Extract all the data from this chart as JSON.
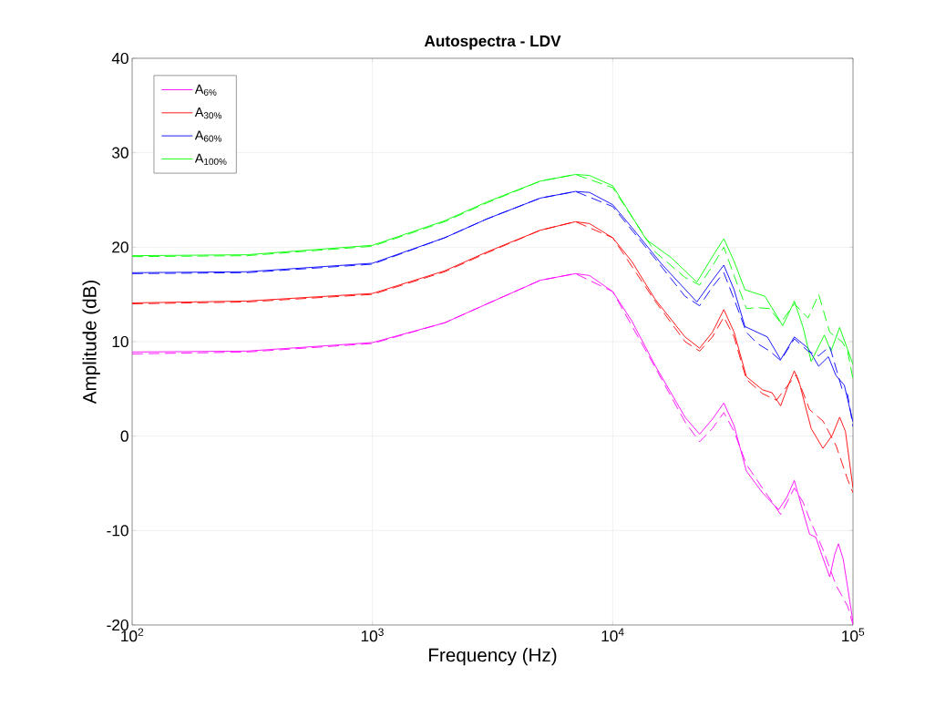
{
  "chart_data": {
    "type": "line",
    "title": "Autospectra - LDV",
    "xlabel": "Frequency (Hz)",
    "ylabel": "Amplitude (dB)",
    "log": "x",
    "grid": true,
    "legend": "top left",
    "xlim": [
      100,
      100000
    ],
    "ylim": [
      -20,
      40
    ],
    "xticks": [
      {
        "value": 100,
        "label": "10$^{2}$"
      },
      {
        "value": 1000,
        "label": "10$^{3}$"
      },
      {
        "value": 10000,
        "label": "10$^{4}$"
      },
      {
        "value": 100000,
        "label": "10$^{5}$"
      }
    ],
    "yticks": [
      -20,
      -10,
      0,
      10,
      20,
      30,
      40
    ],
    "series": [
      {
        "name": "A$_{6%}$",
        "color": "#ff00ff",
        "line_style": "solid",
        "x": [
          100,
          300,
          1000,
          2000,
          3000,
          5000,
          7000,
          8000,
          10000,
          12000,
          15000,
          20000,
          23000,
          26000,
          29000,
          32000,
          36000,
          42000,
          49000,
          53000,
          57000,
          62000,
          66000,
          70000,
          74000,
          80000,
          84000,
          87000,
          91000,
          95000,
          100000
        ],
        "values": [
          8.9,
          9.0,
          9.9,
          12.0,
          14.0,
          16.5,
          17.2,
          17.0,
          15.3,
          12.2,
          7.5,
          2.0,
          0.2,
          1.8,
          3.5,
          1.1,
          -3.7,
          -6.0,
          -7.8,
          -6.5,
          -4.7,
          -8.0,
          -10.4,
          -10.7,
          -12.5,
          -14.9,
          -12.5,
          -11.4,
          -13.0,
          -16.0,
          -19.7
        ]
      },
      {
        "name": "A$_{30%}$",
        "color": "#ff0000",
        "line_style": "solid",
        "x": [
          100,
          300,
          1000,
          2000,
          3000,
          5000,
          7000,
          8000,
          10000,
          12000,
          15000,
          20000,
          23000,
          26000,
          29000,
          32000,
          36000,
          42000,
          46000,
          50000,
          54000,
          57000,
          60000,
          67000,
          75000,
          82000,
          88000,
          93000,
          100000
        ],
        "values": [
          14.1,
          14.3,
          15.1,
          17.5,
          19.5,
          21.8,
          22.7,
          22.5,
          21.0,
          18.5,
          14.5,
          10.5,
          9.3,
          11.0,
          13.4,
          11.0,
          6.3,
          4.9,
          4.6,
          3.2,
          5.5,
          6.9,
          5.5,
          0.8,
          -1.3,
          0.1,
          2.0,
          0.5,
          -5.5
        ]
      },
      {
        "name": "A$_{60%}$",
        "color": "#0000ff",
        "line_style": "solid",
        "x": [
          100,
          300,
          1000,
          2000,
          3000,
          5000,
          7000,
          8000,
          10000,
          12000,
          16000,
          22400,
          26000,
          29000,
          32000,
          35500,
          44000,
          50000,
          54000,
          57000,
          65000,
          72000,
          79000,
          85000,
          92000,
          100000
        ],
        "values": [
          17.3,
          17.4,
          18.3,
          21.0,
          23.0,
          25.2,
          25.9,
          25.8,
          24.5,
          22.1,
          18.2,
          14.2,
          16.5,
          18.1,
          15.5,
          11.6,
          10.5,
          8.1,
          9.5,
          10.5,
          9.3,
          7.4,
          8.4,
          6.4,
          5.4,
          1.5
        ]
      },
      {
        "name": "A$_{100%}$",
        "color": "#00ff00",
        "line_style": "solid",
        "x": [
          100,
          300,
          1000,
          2000,
          3000,
          5000,
          7000,
          8000,
          10000,
          13800,
          17500,
          22400,
          26000,
          29000,
          32000,
          35500,
          43000,
          51000,
          54000,
          57000,
          62000,
          67000,
          76000,
          81000,
          88000,
          100000
        ],
        "values": [
          19.1,
          19.2,
          20.2,
          22.8,
          24.8,
          27.0,
          27.7,
          27.6,
          26.5,
          20.8,
          18.9,
          16.3,
          19.0,
          20.9,
          18.5,
          15.5,
          14.8,
          11.7,
          13.0,
          14.3,
          11.5,
          7.9,
          10.7,
          9.0,
          11.5,
          7.6
        ]
      },
      {
        "color": "#ff00ff",
        "line_style": "dashed",
        "x": [
          100,
          300,
          1000,
          2000,
          3000,
          5000,
          7000,
          10000,
          15000,
          20000,
          23000,
          26000,
          29000,
          32000,
          36000,
          42000,
          50000,
          57000,
          62000,
          66000,
          75000,
          85000,
          95000,
          100000
        ],
        "values": [
          8.7,
          8.9,
          9.8,
          12.0,
          14.0,
          16.5,
          17.2,
          15.3,
          7.3,
          1.5,
          -0.6,
          0.8,
          2.5,
          0.5,
          -3.0,
          -5.5,
          -8.3,
          -5.5,
          -7.0,
          -8.8,
          -12.0,
          -15.8,
          -18.0,
          -20.0
        ]
      },
      {
        "color": "#ff0000",
        "line_style": "dashed",
        "x": [
          100,
          300,
          1000,
          2000,
          3000,
          5000,
          7000,
          10000,
          15000,
          20000,
          23000,
          26000,
          29000,
          32000,
          36000,
          42000,
          48000,
          54000,
          58000,
          66000,
          75000,
          85000,
          95000,
          100000
        ],
        "values": [
          14.0,
          14.2,
          15.0,
          17.4,
          19.4,
          21.8,
          22.7,
          21.0,
          14.3,
          10.0,
          9.0,
          10.5,
          12.6,
          10.5,
          6.0,
          4.5,
          3.8,
          5.5,
          6.5,
          2.8,
          1.6,
          -1.0,
          -4.6,
          -6.0
        ]
      },
      {
        "color": "#0000ff",
        "line_style": "dashed",
        "x": [
          100,
          300,
          1000,
          2000,
          3000,
          5000,
          7000,
          10000,
          15000,
          20000,
          23000,
          26000,
          29000,
          32000,
          36000,
          40000,
          45000,
          50000,
          57000,
          65000,
          72000,
          80000,
          90000,
          95000,
          100000
        ],
        "values": [
          17.2,
          17.3,
          18.2,
          21.0,
          23.0,
          25.2,
          25.9,
          24.3,
          18.8,
          14.8,
          13.8,
          15.8,
          17.3,
          14.5,
          11.0,
          9.8,
          9.0,
          8.0,
          10.3,
          9.0,
          8.5,
          9.5,
          5.0,
          4.4,
          1.0
        ]
      },
      {
        "color": "#00ff00",
        "line_style": "dashed",
        "x": [
          100,
          300,
          1000,
          2000,
          3000,
          5000,
          7000,
          10000,
          15000,
          20000,
          23000,
          26000,
          29000,
          32000,
          36000,
          40000,
          45000,
          50000,
          57000,
          65000,
          72000,
          80000,
          90000,
          95000,
          100000
        ],
        "values": [
          19.0,
          19.1,
          20.1,
          22.7,
          24.7,
          27.0,
          27.7,
          26.3,
          19.5,
          16.8,
          16.0,
          18.0,
          20.0,
          17.0,
          13.5,
          13.6,
          13.5,
          12.0,
          14.0,
          12.5,
          15.0,
          11.0,
          10.0,
          9.0,
          6.0
        ]
      }
    ]
  }
}
